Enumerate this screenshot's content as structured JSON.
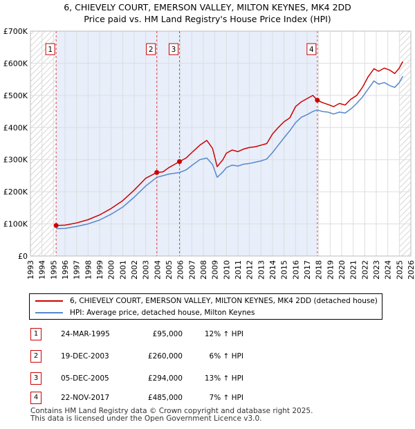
{
  "title_line1": "6, CHIEVELY COURT, EMERSON VALLEY, MILTON KEYNES, MK4 2DD",
  "title_line2": "Price paid vs. HM Land Registry's House Price Index (HPI)",
  "chart_data": {
    "type": "line",
    "x_range": [
      1993,
      2026
    ],
    "ylim": [
      0,
      700000
    ],
    "y_ticks": [
      0,
      100000,
      200000,
      300000,
      400000,
      500000,
      600000,
      700000
    ],
    "y_tick_labels": [
      "£0",
      "£100K",
      "£200K",
      "£300K",
      "£400K",
      "£500K",
      "£600K",
      "£700K"
    ],
    "x_ticks": [
      1993,
      1994,
      1995,
      1996,
      1997,
      1998,
      1999,
      2000,
      2001,
      2002,
      2003,
      2004,
      2005,
      2006,
      2007,
      2008,
      2009,
      2010,
      2011,
      2012,
      2013,
      2014,
      2015,
      2016,
      2017,
      2018,
      2019,
      2020,
      2021,
      2022,
      2023,
      2024,
      2025,
      2026
    ],
    "x_tick_labels": [
      "1993",
      "1994",
      "1995",
      "1996",
      "1997",
      "1998",
      "1999",
      "2000",
      "2001",
      "2002",
      "2003",
      "2004",
      "2005",
      "2006",
      "2007",
      "2008",
      "2009",
      "2010",
      "2011",
      "2012",
      "2013",
      "2014",
      "2015",
      "2016",
      "2017",
      "2018",
      "2019",
      "2020",
      "2021",
      "2022",
      "2023",
      "2024",
      "2025",
      "2026"
    ],
    "hatched_before": 1995.23,
    "hatched_after": 2025.0,
    "shaded_start": 1995.23,
    "shaded_end": 2017.9,
    "series": [
      {
        "name": "6, CHIEVELY COURT, EMERSON VALLEY, MILTON KEYNES, MK4 2DD (detached house)",
        "color": "#cc0000",
        "x": [
          1995.23,
          1996.0,
          1997.0,
          1998.0,
          1999.0,
          2000.0,
          2001.0,
          2002.0,
          2003.0,
          2003.96,
          2004.5,
          2005.0,
          2005.93,
          2006.5,
          2007.0,
          2007.7,
          2008.3,
          2008.8,
          2009.2,
          2009.7,
          2010.0,
          2010.5,
          2011.0,
          2011.5,
          2012.0,
          2012.5,
          2013.0,
          2013.5,
          2014.0,
          2014.5,
          2015.0,
          2015.5,
          2016.0,
          2016.5,
          2017.0,
          2017.5,
          2017.89,
          2018.3,
          2018.8,
          2019.3,
          2019.8,
          2020.3,
          2020.8,
          2021.3,
          2021.8,
          2022.3,
          2022.8,
          2023.2,
          2023.7,
          2024.2,
          2024.6,
          2025.0,
          2025.3
        ],
        "y": [
          95000,
          96000,
          103000,
          113000,
          128000,
          148000,
          172000,
          205000,
          242000,
          260000,
          262000,
          275000,
          294000,
          305000,
          322000,
          345000,
          360000,
          335000,
          278000,
          300000,
          320000,
          330000,
          325000,
          333000,
          338000,
          340000,
          345000,
          350000,
          380000,
          400000,
          418000,
          430000,
          465000,
          480000,
          490000,
          500000,
          485000,
          478000,
          472000,
          465000,
          475000,
          470000,
          488000,
          500000,
          525000,
          558000,
          583000,
          575000,
          585000,
          578000,
          568000,
          585000,
          605000
        ]
      },
      {
        "name": "HPI: Average price, detached house, Milton Keynes",
        "color": "#5588cc",
        "x": [
          1995.23,
          1996.0,
          1997.0,
          1998.0,
          1999.0,
          2000.0,
          2001.0,
          2002.0,
          2003.0,
          2003.96,
          2004.5,
          2005.0,
          2005.93,
          2006.5,
          2007.0,
          2007.7,
          2008.3,
          2008.8,
          2009.2,
          2009.7,
          2010.0,
          2010.5,
          2011.0,
          2011.5,
          2012.0,
          2012.5,
          2013.0,
          2013.5,
          2014.0,
          2014.5,
          2015.0,
          2015.5,
          2016.0,
          2016.5,
          2017.0,
          2017.5,
          2017.89,
          2018.3,
          2018.8,
          2019.3,
          2019.8,
          2020.3,
          2020.8,
          2021.3,
          2021.8,
          2022.3,
          2022.8,
          2023.2,
          2023.7,
          2024.2,
          2024.6,
          2025.0,
          2025.3
        ],
        "y": [
          85000,
          86000,
          92000,
          100000,
          112000,
          130000,
          152000,
          183000,
          218000,
          245000,
          250000,
          255000,
          260000,
          268000,
          282000,
          300000,
          305000,
          285000,
          245000,
          262000,
          275000,
          283000,
          280000,
          286000,
          288000,
          292000,
          296000,
          302000,
          322000,
          345000,
          368000,
          390000,
          415000,
          432000,
          440000,
          450000,
          455000,
          450000,
          448000,
          442000,
          448000,
          445000,
          458000,
          475000,
          495000,
          520000,
          545000,
          535000,
          540000,
          530000,
          525000,
          540000,
          560000
        ]
      }
    ],
    "markers": [
      {
        "label": "1",
        "x": 1995.23,
        "y": 95000
      },
      {
        "label": "2",
        "x": 2003.96,
        "y": 260000
      },
      {
        "label": "3",
        "x": 2005.93,
        "y": 294000
      },
      {
        "label": "4",
        "x": 2017.89,
        "y": 485000
      }
    ]
  },
  "legend": [
    {
      "label": "6, CHIEVELY COURT, EMERSON VALLEY, MILTON KEYNES, MK4 2DD (detached house)",
      "color": "#cc0000"
    },
    {
      "label": "HPI: Average price, detached house, Milton Keynes",
      "color": "#5588cc"
    }
  ],
  "transactions": [
    {
      "num": "1",
      "date": "24-MAR-1995",
      "price": "£95,000",
      "hpi": "12% ↑ HPI"
    },
    {
      "num": "2",
      "date": "19-DEC-2003",
      "price": "£260,000",
      "hpi": "6% ↑ HPI"
    },
    {
      "num": "3",
      "date": "05-DEC-2005",
      "price": "£294,000",
      "hpi": "13% ↑ HPI"
    },
    {
      "num": "4",
      "date": "22-NOV-2017",
      "price": "£485,000",
      "hpi": "7% ↑ HPI"
    }
  ],
  "footer_line1": "Contains HM Land Registry data © Crown copyright and database right 2025.",
  "footer_line2": "This data is licensed under the Open Government Licence v3.0."
}
